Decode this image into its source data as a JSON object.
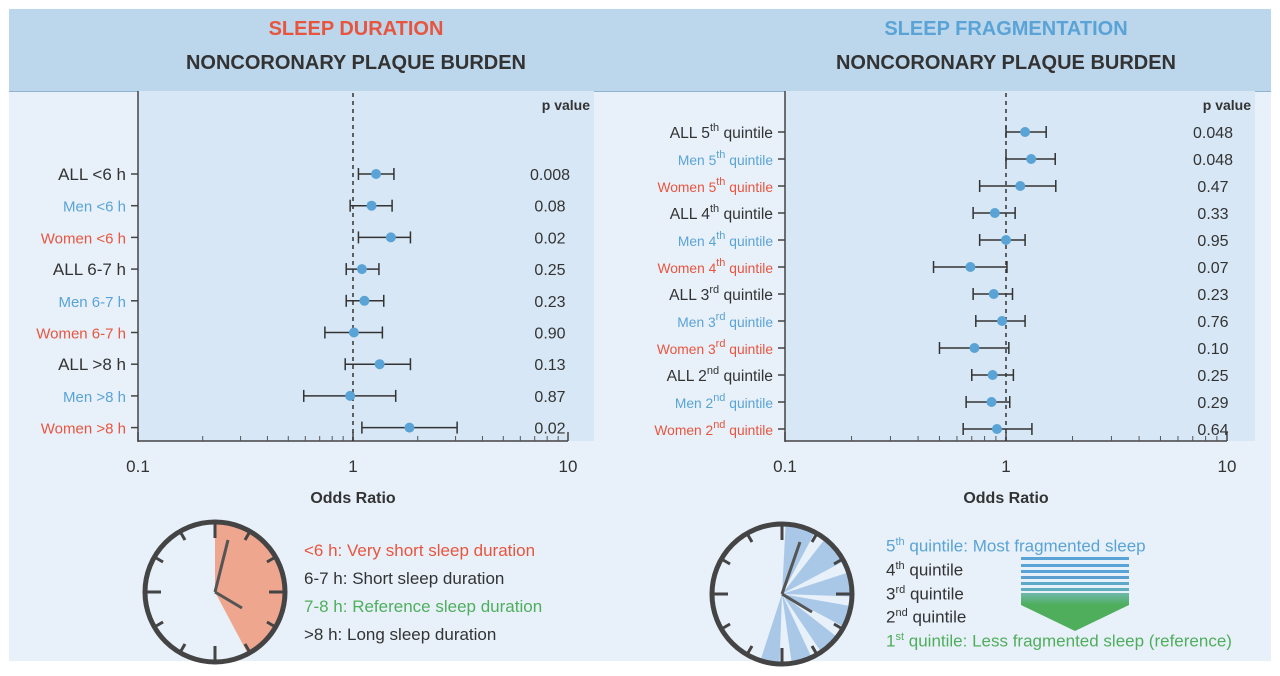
{
  "colors": {
    "red": "#e8553e",
    "blue": "#5aa3d6",
    "green": "#4fae5c",
    "dark": "#333333",
    "clock_fill": "#eea78e",
    "frag_fill": "#a9c8e8"
  },
  "left_panel": {
    "title": "SLEEP DURATION",
    "subtitle": "NONCORONARY PLAQUE BURDEN",
    "legend": [
      {
        "text": "<6 h: Very short sleep duration",
        "color": "red"
      },
      {
        "text": "6-7 h: Short sleep duration",
        "color": "dark"
      },
      {
        "text": "7-8 h: Reference sleep duration",
        "color": "green"
      },
      {
        "text": ">8 h: Long sleep duration",
        "color": "dark"
      }
    ]
  },
  "right_panel": {
    "title": "SLEEP FRAGMENTATION",
    "subtitle": "NONCORONARY PLAQUE BURDEN",
    "legend": [
      {
        "sup": "",
        "pre": "",
        "text": "5th quintile: Most fragmented sleep",
        "parts": [
          "5",
          "th",
          " quintile: Most fragmented sleep"
        ],
        "color": "blue"
      },
      {
        "parts": [
          "4",
          "th",
          " quintile"
        ],
        "color": "dark"
      },
      {
        "parts": [
          "3",
          "rd",
          " quintile"
        ],
        "color": "dark"
      },
      {
        "parts": [
          "2",
          "nd",
          " quintile"
        ],
        "color": "dark"
      },
      {
        "parts": [
          "1",
          "st",
          " quintile: Less fragmented sleep (reference)"
        ],
        "color": "green"
      }
    ]
  },
  "chart_data": [
    {
      "type": "forest",
      "title": "SLEEP DURATION",
      "subtitle": "NONCORONARY PLAQUE BURDEN",
      "xlabel": "Odds Ratio",
      "xscale": "log",
      "xlim": [
        0.1,
        10
      ],
      "xticks": [
        "0.1",
        "1",
        "10"
      ],
      "reference_line": 1,
      "pvalue_header": "p value",
      "rows": [
        {
          "label": "ALL <6 h",
          "color": "dark",
          "or": 1.28,
          "lo": 1.06,
          "hi": 1.55,
          "p": "0.008"
        },
        {
          "label": "Men <6 h",
          "color": "blue",
          "or": 1.22,
          "lo": 0.97,
          "hi": 1.52,
          "p": "0.08"
        },
        {
          "label": "Women <6 h",
          "color": "red",
          "or": 1.5,
          "lo": 1.06,
          "hi": 1.85,
          "p": "0.02"
        },
        {
          "label": "ALL 6-7 h",
          "color": "dark",
          "or": 1.1,
          "lo": 0.93,
          "hi": 1.32,
          "p": "0.25"
        },
        {
          "label": "Men 6-7 h",
          "color": "blue",
          "or": 1.13,
          "lo": 0.93,
          "hi": 1.39,
          "p": "0.23"
        },
        {
          "label": "Women 6-7 h",
          "color": "red",
          "or": 1.01,
          "lo": 0.74,
          "hi": 1.37,
          "p": "0.90"
        },
        {
          "label": "ALL >8 h",
          "color": "dark",
          "or": 1.33,
          "lo": 0.92,
          "hi": 1.85,
          "p": "0.13"
        },
        {
          "label": "Men >8 h",
          "color": "blue",
          "or": 0.97,
          "lo": 0.59,
          "hi": 1.58,
          "p": "0.87"
        },
        {
          "label": "Women >8 h",
          "color": "red",
          "or": 1.83,
          "lo": 1.1,
          "hi": 3.05,
          "p": "0.02"
        }
      ]
    },
    {
      "type": "forest",
      "title": "SLEEP FRAGMENTATION",
      "subtitle": "NONCORONARY PLAQUE BURDEN",
      "xlabel": "Odds Ratio",
      "xscale": "log",
      "xlim": [
        0.1,
        10
      ],
      "xticks": [
        "0.1",
        "1",
        "10"
      ],
      "reference_line": 1,
      "pvalue_header": "p value",
      "rows": [
        {
          "label": [
            "ALL 5",
            "th",
            " quintile"
          ],
          "color": "dark",
          "or": 1.22,
          "lo": 1.0,
          "hi": 1.52,
          "p": "0.048"
        },
        {
          "label": [
            "Men 5",
            "th",
            " quintile"
          ],
          "color": "blue",
          "or": 1.3,
          "lo": 1.0,
          "hi": 1.67,
          "p": "0.048"
        },
        {
          "label": [
            "Women 5",
            "th",
            " quintile"
          ],
          "color": "red",
          "or": 1.16,
          "lo": 0.76,
          "hi": 1.68,
          "p": "0.47"
        },
        {
          "label": [
            "ALL 4",
            "th",
            " quintile"
          ],
          "color": "dark",
          "or": 0.89,
          "lo": 0.71,
          "hi": 1.1,
          "p": "0.33"
        },
        {
          "label": [
            "Men 4",
            "th",
            " quintile"
          ],
          "color": "blue",
          "or": 1.0,
          "lo": 0.76,
          "hi": 1.22,
          "p": "0.95"
        },
        {
          "label": [
            "Women 4",
            "th",
            " quintile"
          ],
          "color": "red",
          "or": 0.69,
          "lo": 0.47,
          "hi": 1.01,
          "p": "0.07"
        },
        {
          "label": [
            "ALL 3",
            "rd",
            " quintile"
          ],
          "color": "dark",
          "or": 0.88,
          "lo": 0.71,
          "hi": 1.07,
          "p": "0.23"
        },
        {
          "label": [
            "Men 3",
            "rd",
            " quintile"
          ],
          "color": "blue",
          "or": 0.96,
          "lo": 0.73,
          "hi": 1.22,
          "p": "0.76"
        },
        {
          "label": [
            "Women 3",
            "rd",
            " quintile"
          ],
          "color": "red",
          "or": 0.72,
          "lo": 0.5,
          "hi": 1.03,
          "p": "0.10"
        },
        {
          "label": [
            "ALL 2",
            "nd",
            " quintile"
          ],
          "color": "dark",
          "or": 0.87,
          "lo": 0.7,
          "hi": 1.08,
          "p": "0.25"
        },
        {
          "label": [
            "Men 2",
            "nd",
            " quintile"
          ],
          "color": "blue",
          "or": 0.86,
          "lo": 0.66,
          "hi": 1.04,
          "p": "0.29"
        },
        {
          "label": [
            "Women 2",
            "nd",
            " quintile"
          ],
          "color": "red",
          "or": 0.91,
          "lo": 0.64,
          "hi": 1.31,
          "p": "0.64"
        }
      ]
    }
  ]
}
